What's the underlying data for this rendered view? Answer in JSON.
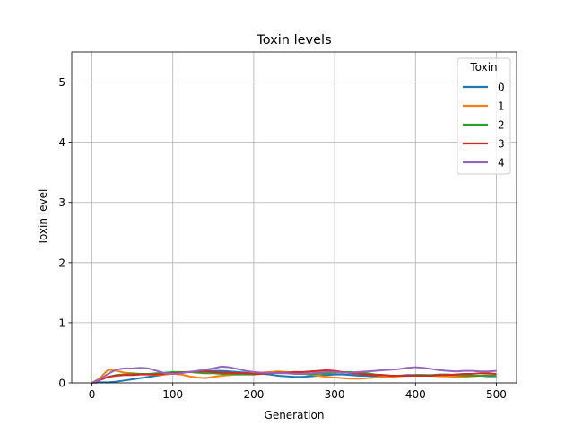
{
  "chart_data": {
    "type": "line",
    "title": "Toxin levels",
    "xlabel": "Generation",
    "ylabel": "Toxin level",
    "xlim": [
      -25,
      525
    ],
    "ylim": [
      0,
      5.5
    ],
    "xticks": [
      0,
      100,
      200,
      300,
      400,
      500
    ],
    "yticks": [
      0,
      1,
      2,
      3,
      4,
      5
    ],
    "grid": true,
    "legend": {
      "title": "Toxin",
      "position": "top-right"
    },
    "x": [
      0,
      10,
      20,
      30,
      40,
      50,
      60,
      70,
      80,
      90,
      100,
      110,
      120,
      130,
      140,
      150,
      160,
      170,
      180,
      190,
      200,
      210,
      220,
      230,
      240,
      250,
      260,
      270,
      280,
      290,
      300,
      310,
      320,
      330,
      340,
      350,
      360,
      370,
      380,
      390,
      400,
      410,
      420,
      430,
      440,
      450,
      460,
      470,
      480,
      490,
      500
    ],
    "series": [
      {
        "name": "0",
        "color": "#1f77b4",
        "values": [
          0.0,
          0.01,
          0.01,
          0.02,
          0.04,
          0.06,
          0.08,
          0.1,
          0.12,
          0.14,
          0.16,
          0.17,
          0.18,
          0.19,
          0.2,
          0.2,
          0.2,
          0.19,
          0.18,
          0.17,
          0.16,
          0.15,
          0.14,
          0.12,
          0.11,
          0.1,
          0.1,
          0.11,
          0.12,
          0.13,
          0.14,
          0.14,
          0.13,
          0.12,
          0.12,
          0.11,
          0.11,
          0.12,
          0.12,
          0.13,
          0.13,
          0.13,
          0.12,
          0.12,
          0.12,
          0.13,
          0.13,
          0.12,
          0.12,
          0.11,
          0.11
        ]
      },
      {
        "name": "1",
        "color": "#ff7f0e",
        "values": [
          0.0,
          0.08,
          0.22,
          0.2,
          0.17,
          0.16,
          0.15,
          0.14,
          0.13,
          0.14,
          0.15,
          0.14,
          0.11,
          0.09,
          0.08,
          0.1,
          0.12,
          0.13,
          0.14,
          0.15,
          0.16,
          0.17,
          0.18,
          0.19,
          0.18,
          0.17,
          0.16,
          0.14,
          0.12,
          0.1,
          0.09,
          0.08,
          0.07,
          0.07,
          0.08,
          0.09,
          0.1,
          0.1,
          0.11,
          0.12,
          0.12,
          0.12,
          0.12,
          0.11,
          0.11,
          0.1,
          0.1,
          0.11,
          0.12,
          0.13,
          0.13
        ]
      },
      {
        "name": "2",
        "color": "#2ca02c",
        "values": [
          0.0,
          0.05,
          0.1,
          0.13,
          0.14,
          0.15,
          0.15,
          0.15,
          0.16,
          0.17,
          0.18,
          0.18,
          0.18,
          0.17,
          0.16,
          0.16,
          0.15,
          0.15,
          0.14,
          0.14,
          0.14,
          0.15,
          0.16,
          0.17,
          0.17,
          0.16,
          0.15,
          0.14,
          0.15,
          0.16,
          0.17,
          0.18,
          0.18,
          0.17,
          0.16,
          0.14,
          0.13,
          0.12,
          0.12,
          0.12,
          0.13,
          0.13,
          0.13,
          0.14,
          0.14,
          0.13,
          0.12,
          0.12,
          0.12,
          0.12,
          0.12
        ]
      },
      {
        "name": "3",
        "color": "#d62728",
        "values": [
          0.0,
          0.05,
          0.1,
          0.12,
          0.13,
          0.13,
          0.14,
          0.14,
          0.14,
          0.15,
          0.16,
          0.17,
          0.18,
          0.19,
          0.19,
          0.18,
          0.17,
          0.17,
          0.16,
          0.16,
          0.15,
          0.15,
          0.16,
          0.17,
          0.17,
          0.18,
          0.18,
          0.19,
          0.2,
          0.21,
          0.2,
          0.18,
          0.16,
          0.15,
          0.14,
          0.13,
          0.13,
          0.12,
          0.12,
          0.12,
          0.12,
          0.12,
          0.12,
          0.13,
          0.13,
          0.14,
          0.15,
          0.15,
          0.16,
          0.16,
          0.15
        ]
      },
      {
        "name": "4",
        "color": "#9467bd",
        "values": [
          0.0,
          0.06,
          0.15,
          0.22,
          0.24,
          0.24,
          0.25,
          0.24,
          0.2,
          0.16,
          0.15,
          0.16,
          0.18,
          0.2,
          0.22,
          0.24,
          0.27,
          0.26,
          0.23,
          0.2,
          0.18,
          0.17,
          0.17,
          0.16,
          0.16,
          0.15,
          0.15,
          0.16,
          0.17,
          0.18,
          0.18,
          0.17,
          0.17,
          0.18,
          0.19,
          0.2,
          0.21,
          0.22,
          0.23,
          0.25,
          0.26,
          0.25,
          0.23,
          0.21,
          0.2,
          0.19,
          0.2,
          0.2,
          0.19,
          0.19,
          0.2
        ]
      }
    ]
  }
}
